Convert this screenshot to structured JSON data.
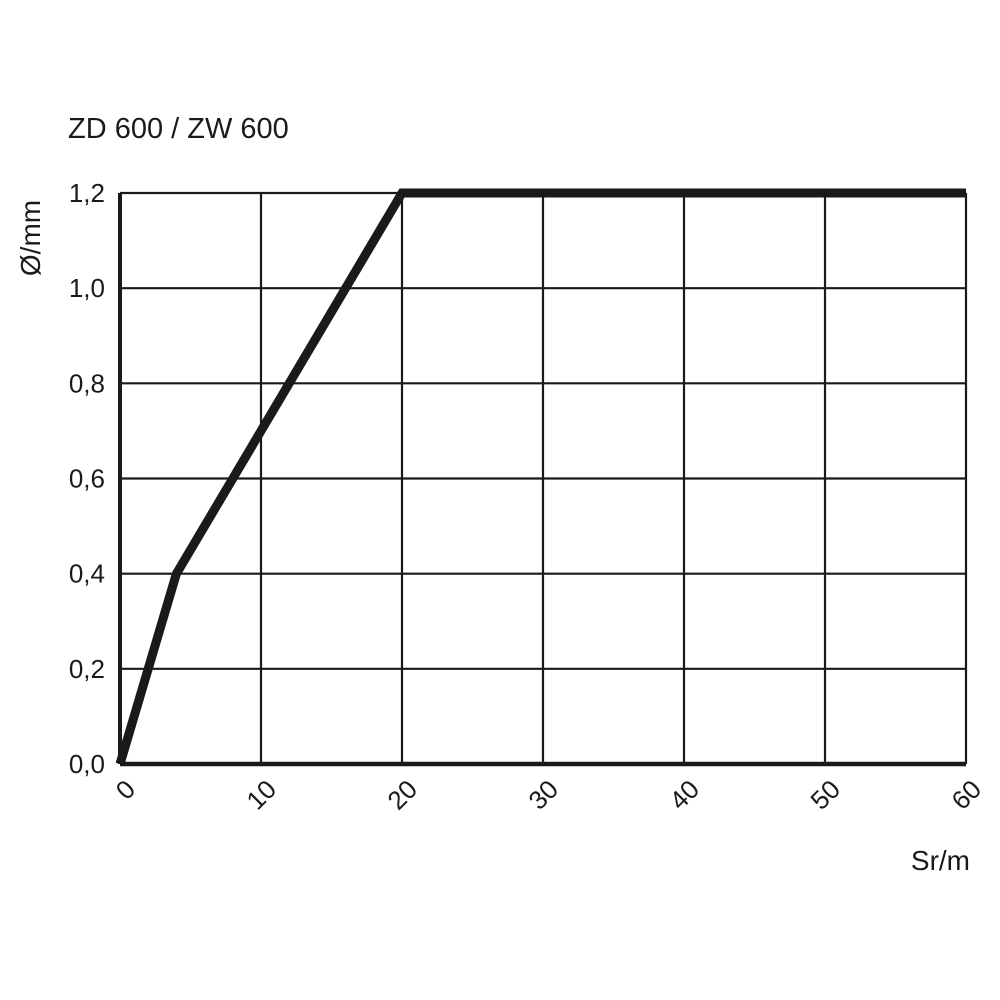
{
  "chart_data": {
    "type": "line",
    "title": "ZD 600 / ZW 600",
    "xlabel": "Sr/m",
    "ylabel": "Ø/mm",
    "xlim": [
      0,
      60
    ],
    "ylim": [
      0,
      1.2
    ],
    "x_ticks": [
      "0",
      "10",
      "20",
      "30",
      "40",
      "50",
      "60"
    ],
    "y_ticks": [
      "0,0",
      "0,2",
      "0,4",
      "0,6",
      "0,8",
      "1,0",
      "1,2"
    ],
    "x_tick_values": [
      0,
      10,
      20,
      30,
      40,
      50,
      60
    ],
    "y_tick_values": [
      0,
      0.2,
      0.4,
      0.6,
      0.8,
      1.0,
      1.2
    ],
    "grid": true,
    "series": [
      {
        "x": [
          0,
          4,
          20,
          60
        ],
        "y": [
          0,
          0.4,
          1.2,
          1.2
        ],
        "color": "#1a1a1a"
      }
    ]
  }
}
